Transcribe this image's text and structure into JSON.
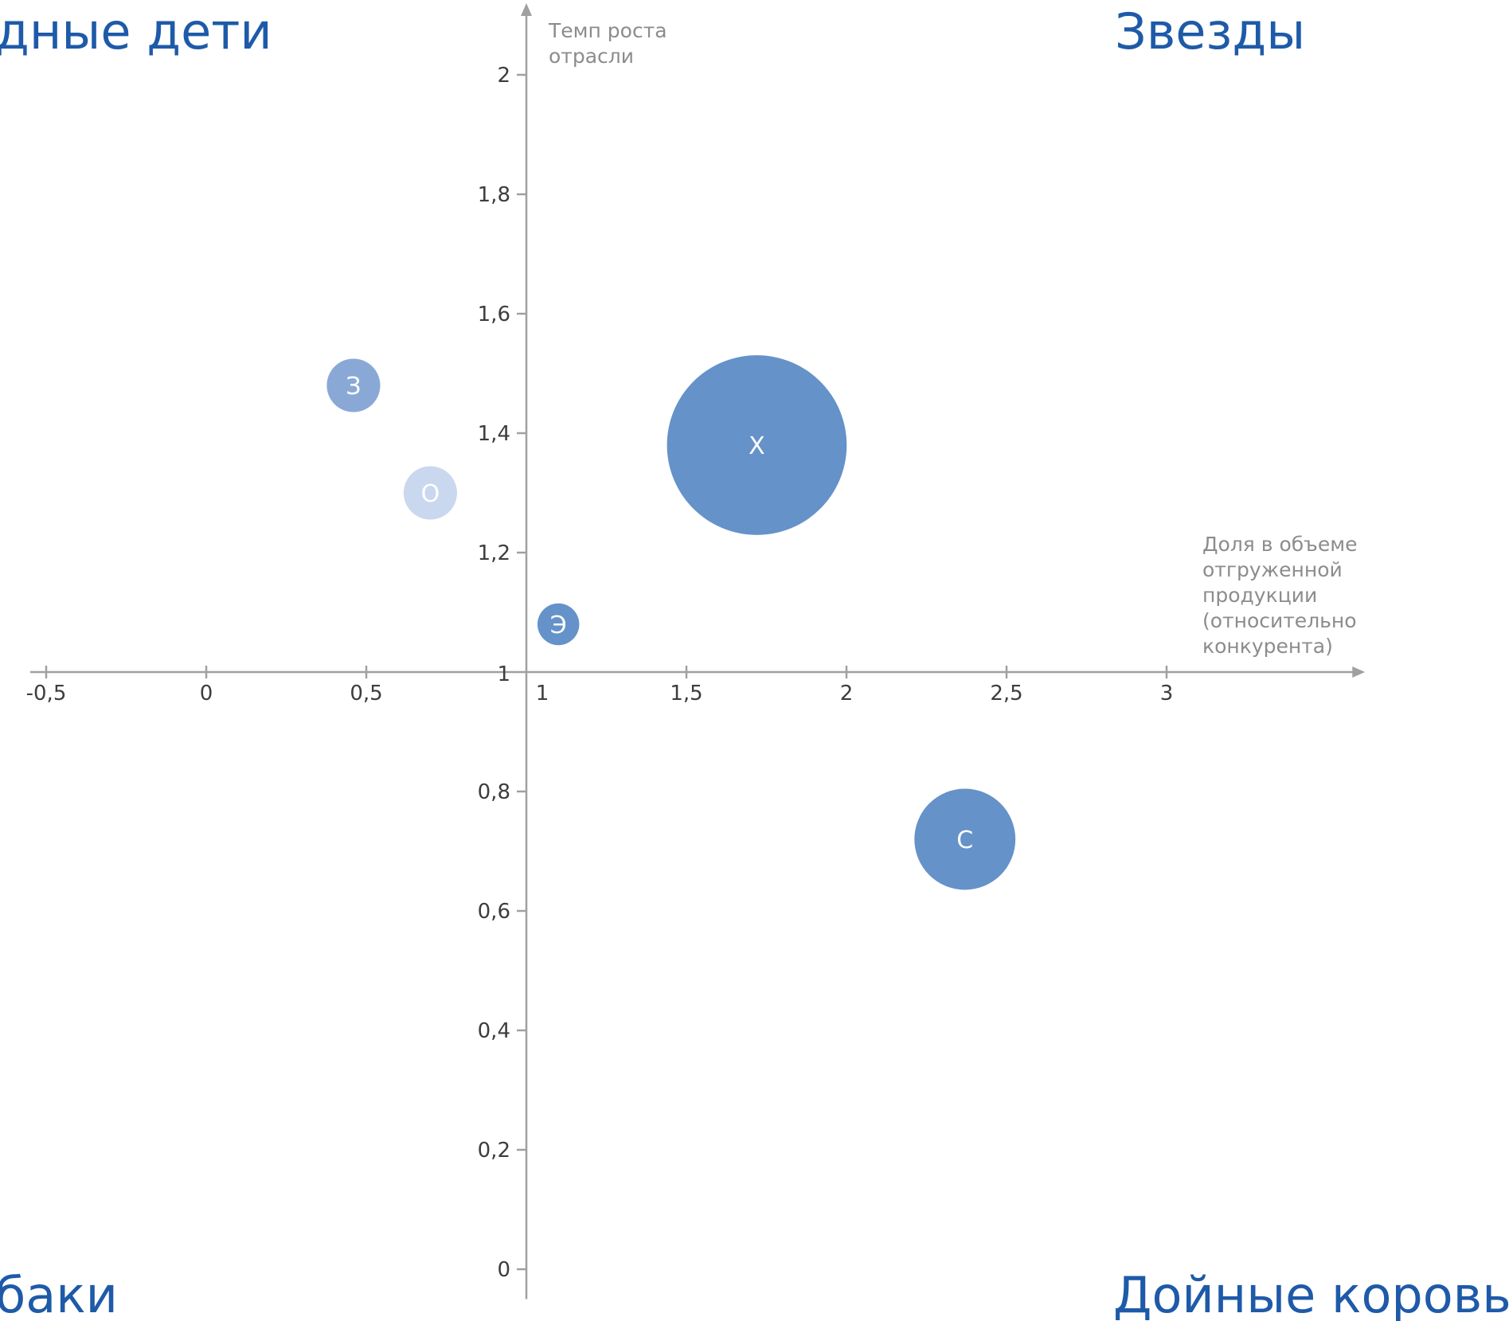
{
  "chart_data": {
    "type": "bubble",
    "quadrants": {
      "top_left": "дные дети",
      "top_right": "Звезды",
      "bottom_left": "баки",
      "bottom_right": "Дойные коровы"
    },
    "xlabel": [
      "Доля в объеме",
      "отгруженной",
      "продукции",
      "(относительно",
      "конкурента)"
    ],
    "ylabel": [
      "Темп роста",
      "отрасли"
    ],
    "x_ticks": [
      {
        "value": -0.5,
        "label": "-0,5"
      },
      {
        "value": 0,
        "label": "0"
      },
      {
        "value": 0.5,
        "label": "0,5"
      },
      {
        "value": 1,
        "label": "1"
      },
      {
        "value": 1.5,
        "label": "1,5"
      },
      {
        "value": 2,
        "label": "2"
      },
      {
        "value": 2.5,
        "label": "2,5"
      },
      {
        "value": 3,
        "label": "3"
      }
    ],
    "y_ticks": [
      {
        "value": 0,
        "label": "0"
      },
      {
        "value": 0.2,
        "label": "0,2"
      },
      {
        "value": 0.4,
        "label": "0,4"
      },
      {
        "value": 0.6,
        "label": "0,6"
      },
      {
        "value": 0.8,
        "label": "0,8"
      },
      {
        "value": 1,
        "label": "1"
      },
      {
        "value": 1.2,
        "label": "1,2"
      },
      {
        "value": 1.4,
        "label": "1,4"
      },
      {
        "value": 1.6,
        "label": "1,6"
      },
      {
        "value": 1.8,
        "label": "1,8"
      },
      {
        "value": 2,
        "label": "2"
      }
    ],
    "xlim": [
      -0.55,
      3.62
    ],
    "ylim": [
      -0.05,
      2.12
    ],
    "axis_crossing": {
      "x": 1,
      "y": 1
    },
    "points": [
      {
        "label": "З",
        "x": 0.46,
        "y": 1.48,
        "size": 0.55,
        "color": "#8aa8d6"
      },
      {
        "label": "О",
        "x": 0.7,
        "y": 1.3,
        "size": 0.55,
        "color": "#c9d8ee"
      },
      {
        "label": "Х",
        "x": 1.72,
        "y": 1.38,
        "size": 1.85,
        "color": "#6592c8"
      },
      {
        "label": "Э",
        "x": 1.1,
        "y": 1.08,
        "size": 0.43,
        "color": "#6592c8"
      },
      {
        "label": "С",
        "x": 2.37,
        "y": 0.72,
        "size": 1.04,
        "color": "#6592c8"
      }
    ],
    "colors": {
      "axis": "#a0a0a0",
      "quadrant_text": "#1e5aa8",
      "tick_text": "#3d3d3d",
      "axis_title": "#8c8c8c"
    },
    "grid": false,
    "legend": "none"
  }
}
